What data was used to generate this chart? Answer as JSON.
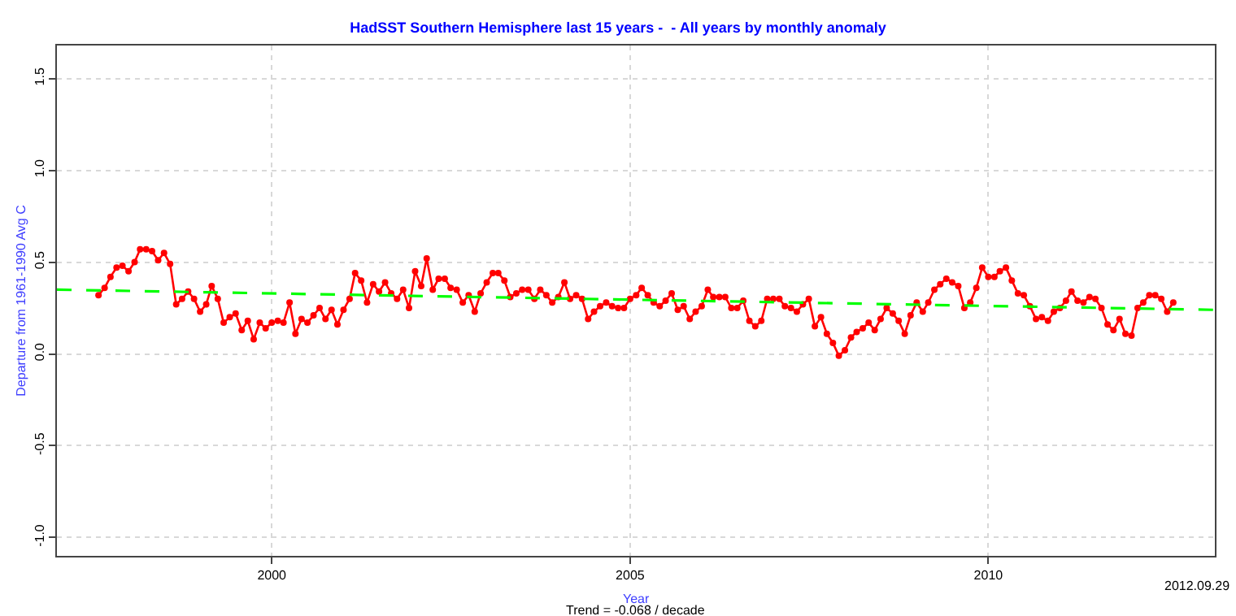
{
  "chart_data": {
    "type": "line",
    "title": "HadSST Southern Hemisphere last 15 years -  - All years by monthly anomaly",
    "xlabel": "Year",
    "ylabel": "Departure from 1961-1990 Avg C",
    "annotations": [
      "Trend = -0.068 / decade",
      "2012.09.29"
    ],
    "xlim": [
      "1997-01",
      "2013-03"
    ],
    "xticks": [
      {
        "value": "2000-01",
        "label": "2000"
      },
      {
        "value": "2005-01",
        "label": "2005"
      },
      {
        "value": "2010-01",
        "label": "2010"
      }
    ],
    "ylim": [
      -1.1,
      1.68
    ],
    "yticks": [
      {
        "value": -1,
        "label": "-1.0"
      },
      {
        "value": -0.5,
        "label": "-0.5"
      },
      {
        "value": 0,
        "label": "0.0"
      },
      {
        "value": 0.5,
        "label": "0.5"
      },
      {
        "value": 1,
        "label": "1.0"
      },
      {
        "value": 1.5,
        "label": "1.5"
      }
    ],
    "grid": true,
    "series": [
      {
        "color": "#ff0000",
        "marker": "circle",
        "line_style": "solid",
        "x": [
          "1997-08",
          "1997-09",
          "1997-10",
          "1997-11",
          "1997-12",
          "1998-01",
          "1998-02",
          "1998-03",
          "1998-04",
          "1998-05",
          "1998-06",
          "1998-07",
          "1998-08",
          "1998-09",
          "1998-10",
          "1998-11",
          "1998-12",
          "1999-01",
          "1999-02",
          "1999-03",
          "1999-04",
          "1999-05",
          "1999-06",
          "1999-07",
          "1999-08",
          "1999-09",
          "1999-10",
          "1999-11",
          "1999-12",
          "2000-01",
          "2000-02",
          "2000-03",
          "2000-04",
          "2000-05",
          "2000-06",
          "2000-07",
          "2000-08",
          "2000-09",
          "2000-10",
          "2000-11",
          "2000-12",
          "2001-01",
          "2001-02",
          "2001-03",
          "2001-04",
          "2001-05",
          "2001-06",
          "2001-07",
          "2001-08",
          "2001-09",
          "2001-10",
          "2001-11",
          "2001-12",
          "2002-01",
          "2002-02",
          "2002-03",
          "2002-04",
          "2002-05",
          "2002-06",
          "2002-07",
          "2002-08",
          "2002-09",
          "2002-10",
          "2002-11",
          "2002-12",
          "2003-01",
          "2003-02",
          "2003-03",
          "2003-04",
          "2003-05",
          "2003-06",
          "2003-07",
          "2003-08",
          "2003-09",
          "2003-10",
          "2003-11",
          "2003-12",
          "2004-01",
          "2004-02",
          "2004-03",
          "2004-04",
          "2004-05",
          "2004-06",
          "2004-07",
          "2004-08",
          "2004-09",
          "2004-10",
          "2004-11",
          "2004-12",
          "2005-01",
          "2005-02",
          "2005-03",
          "2005-04",
          "2005-05",
          "2005-06",
          "2005-07",
          "2005-08",
          "2005-09",
          "2005-10",
          "2005-11",
          "2005-12",
          "2006-01",
          "2006-02",
          "2006-03",
          "2006-04",
          "2006-05",
          "2006-06",
          "2006-07",
          "2006-08",
          "2006-09",
          "2006-10",
          "2006-11",
          "2006-12",
          "2007-01",
          "2007-02",
          "2007-03",
          "2007-04",
          "2007-05",
          "2007-06",
          "2007-07",
          "2007-08",
          "2007-09",
          "2007-10",
          "2007-11",
          "2007-12",
          "2008-01",
          "2008-02",
          "2008-03",
          "2008-04",
          "2008-05",
          "2008-06",
          "2008-07",
          "2008-08",
          "2008-09",
          "2008-10",
          "2008-11",
          "2008-12",
          "2009-01",
          "2009-02",
          "2009-03",
          "2009-04",
          "2009-05",
          "2009-06",
          "2009-07",
          "2009-08",
          "2009-09",
          "2009-10",
          "2009-11",
          "2009-12",
          "2010-01",
          "2010-02",
          "2010-03",
          "2010-04",
          "2010-05",
          "2010-06",
          "2010-07",
          "2010-08",
          "2010-09",
          "2010-10",
          "2010-11",
          "2010-12",
          "2011-01",
          "2011-02",
          "2011-03",
          "2011-04",
          "2011-05",
          "2011-06",
          "2011-07",
          "2011-08",
          "2011-09",
          "2011-10",
          "2011-11",
          "2011-12",
          "2012-01",
          "2012-02",
          "2012-03",
          "2012-04",
          "2012-05",
          "2012-06",
          "2012-07",
          "2012-08"
        ],
        "values": [
          0.32,
          0.36,
          0.42,
          0.47,
          0.48,
          0.45,
          0.5,
          0.57,
          0.57,
          0.56,
          0.51,
          0.55,
          0.49,
          0.27,
          0.3,
          0.34,
          0.3,
          0.23,
          0.27,
          0.37,
          0.3,
          0.17,
          0.2,
          0.22,
          0.13,
          0.18,
          0.08,
          0.17,
          0.14,
          0.17,
          0.18,
          0.17,
          0.28,
          0.11,
          0.19,
          0.17,
          0.21,
          0.25,
          0.19,
          0.24,
          0.16,
          0.24,
          0.3,
          0.44,
          0.4,
          0.28,
          0.38,
          0.34,
          0.39,
          0.33,
          0.3,
          0.35,
          0.25,
          0.45,
          0.37,
          0.52,
          0.35,
          0.41,
          0.41,
          0.36,
          0.35,
          0.28,
          0.32,
          0.23,
          0.33,
          0.39,
          0.44,
          0.44,
          0.4,
          0.31,
          0.33,
          0.35,
          0.35,
          0.3,
          0.35,
          0.32,
          0.28,
          0.31,
          0.39,
          0.3,
          0.32,
          0.3,
          0.19,
          0.23,
          0.26,
          0.28,
          0.26,
          0.25,
          0.25,
          0.3,
          0.32,
          0.36,
          0.32,
          0.28,
          0.26,
          0.29,
          0.33,
          0.24,
          0.26,
          0.19,
          0.23,
          0.26,
          0.35,
          0.31,
          0.31,
          0.31,
          0.25,
          0.25,
          0.29,
          0.18,
          0.15,
          0.18,
          0.3,
          0.3,
          0.3,
          0.26,
          0.25,
          0.23,
          0.27,
          0.3,
          0.15,
          0.2,
          0.11,
          0.06,
          -0.01,
          0.02,
          0.09,
          0.12,
          0.14,
          0.17,
          0.13,
          0.19,
          0.25,
          0.22,
          0.18,
          0.11,
          0.21,
          0.28,
          0.23,
          0.28,
          0.35,
          0.38,
          0.41,
          0.39,
          0.37,
          0.25,
          0.28,
          0.36,
          0.47,
          0.42,
          0.42,
          0.45,
          0.47,
          0.4,
          0.33,
          0.32,
          0.26,
          0.19,
          0.2,
          0.18,
          0.23,
          0.25,
          0.29,
          0.34,
          0.29,
          0.28,
          0.31,
          0.3,
          0.25,
          0.16,
          0.13,
          0.19,
          0.11,
          0.1,
          0.25,
          0.28,
          0.32,
          0.32,
          0.3,
          0.23,
          0.28
        ]
      },
      {
        "type": "line",
        "color": "#00ff00",
        "marker": "none",
        "line_style": "dashed",
        "x": [
          "1997-01",
          "2013-03"
        ],
        "values": [
          0.35,
          0.24
        ]
      }
    ]
  }
}
